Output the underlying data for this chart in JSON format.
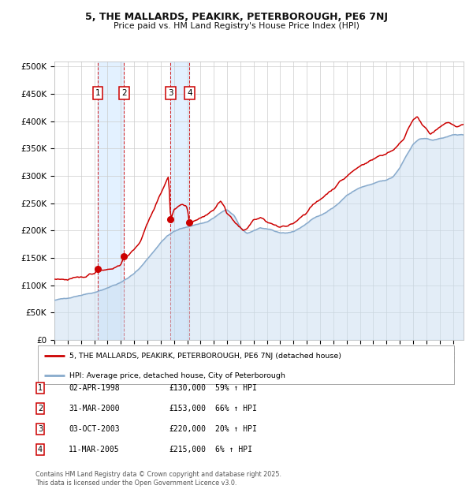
{
  "title_line1": "5, THE MALLARDS, PEAKIRK, PETERBOROUGH, PE6 7NJ",
  "title_line2": "Price paid vs. HM Land Registry's House Price Index (HPI)",
  "legend_label_red": "5, THE MALLARDS, PEAKIRK, PETERBOROUGH, PE6 7NJ (detached house)",
  "legend_label_blue": "HPI: Average price, detached house, City of Peterborough",
  "footer": "Contains HM Land Registry data © Crown copyright and database right 2025.\nThis data is licensed under the Open Government Licence v3.0.",
  "transactions": [
    {
      "num": 1,
      "date": "02-APR-1998",
      "price": 130000,
      "hpi_pct": "59%",
      "year": 1998.25
    },
    {
      "num": 2,
      "date": "31-MAR-2000",
      "price": 153000,
      "hpi_pct": "66%",
      "year": 2000.25
    },
    {
      "num": 3,
      "date": "03-OCT-2003",
      "price": 220000,
      "hpi_pct": "20%",
      "year": 2003.75
    },
    {
      "num": 4,
      "date": "11-MAR-2005",
      "price": 215000,
      "hpi_pct": "6%",
      "year": 2005.17
    }
  ],
  "ylim": [
    0,
    510000
  ],
  "xlim_start": 1995.0,
  "xlim_end": 2025.8,
  "background_color": "#ffffff",
  "grid_color": "#cccccc",
  "red_color": "#cc0000",
  "blue_line_color": "#88aacc",
  "blue_fill_color": "#c8ddf0",
  "shading_color": "#ddeeff",
  "dashed_line_color": "#cc0000",
  "hpi_anchors": [
    [
      1995.0,
      72000
    ],
    [
      1996.0,
      77000
    ],
    [
      1997.0,
      82000
    ],
    [
      1998.0,
      87000
    ],
    [
      1998.5,
      91000
    ],
    [
      1999.0,
      95000
    ],
    [
      1999.5,
      100000
    ],
    [
      2000.0,
      105000
    ],
    [
      2000.5,
      112000
    ],
    [
      2001.0,
      122000
    ],
    [
      2001.5,
      133000
    ],
    [
      2002.0,
      148000
    ],
    [
      2002.5,
      163000
    ],
    [
      2003.0,
      178000
    ],
    [
      2003.5,
      190000
    ],
    [
      2004.0,
      198000
    ],
    [
      2004.5,
      203000
    ],
    [
      2005.0,
      207000
    ],
    [
      2005.5,
      210000
    ],
    [
      2006.0,
      213000
    ],
    [
      2006.5,
      216000
    ],
    [
      2007.0,
      223000
    ],
    [
      2007.5,
      232000
    ],
    [
      2008.0,
      238000
    ],
    [
      2008.5,
      228000
    ],
    [
      2009.0,
      205000
    ],
    [
      2009.5,
      195000
    ],
    [
      2010.0,
      200000
    ],
    [
      2010.5,
      205000
    ],
    [
      2011.0,
      202000
    ],
    [
      2011.5,
      199000
    ],
    [
      2012.0,
      196000
    ],
    [
      2012.5,
      196000
    ],
    [
      2013.0,
      198000
    ],
    [
      2013.5,
      205000
    ],
    [
      2014.0,
      213000
    ],
    [
      2014.5,
      222000
    ],
    [
      2015.0,
      228000
    ],
    [
      2015.5,
      235000
    ],
    [
      2016.0,
      242000
    ],
    [
      2016.5,
      252000
    ],
    [
      2017.0,
      264000
    ],
    [
      2017.5,
      272000
    ],
    [
      2018.0,
      278000
    ],
    [
      2018.5,
      282000
    ],
    [
      2019.0,
      285000
    ],
    [
      2019.5,
      290000
    ],
    [
      2020.0,
      292000
    ],
    [
      2020.5,
      298000
    ],
    [
      2021.0,
      315000
    ],
    [
      2021.5,
      338000
    ],
    [
      2022.0,
      358000
    ],
    [
      2022.5,
      368000
    ],
    [
      2023.0,
      368000
    ],
    [
      2023.5,
      365000
    ],
    [
      2024.0,
      367000
    ],
    [
      2024.5,
      372000
    ],
    [
      2025.0,
      375000
    ],
    [
      2025.8,
      375000
    ]
  ],
  "red_anchors": [
    [
      1995.0,
      112000
    ],
    [
      1996.0,
      110000
    ],
    [
      1997.0,
      114000
    ],
    [
      1997.5,
      118000
    ],
    [
      1998.0,
      122000
    ],
    [
      1998.25,
      130000
    ],
    [
      1998.5,
      128000
    ],
    [
      1999.0,
      129000
    ],
    [
      1999.5,
      132000
    ],
    [
      2000.0,
      137000
    ],
    [
      2000.25,
      153000
    ],
    [
      2000.5,
      154000
    ],
    [
      2001.0,
      163000
    ],
    [
      2001.5,
      183000
    ],
    [
      2002.0,
      212000
    ],
    [
      2002.5,
      240000
    ],
    [
      2003.0,
      268000
    ],
    [
      2003.5,
      295000
    ],
    [
      2003.6,
      300000
    ],
    [
      2003.75,
      220000
    ],
    [
      2004.0,
      238000
    ],
    [
      2004.3,
      244000
    ],
    [
      2004.6,
      250000
    ],
    [
      2004.9,
      246000
    ],
    [
      2005.0,
      242000
    ],
    [
      2005.17,
      215000
    ],
    [
      2005.4,
      217000
    ],
    [
      2005.8,
      220000
    ],
    [
      2006.0,
      224000
    ],
    [
      2006.5,
      229000
    ],
    [
      2007.0,
      238000
    ],
    [
      2007.3,
      248000
    ],
    [
      2007.5,
      252000
    ],
    [
      2007.8,
      246000
    ],
    [
      2008.0,
      232000
    ],
    [
      2008.5,
      218000
    ],
    [
      2009.0,
      204000
    ],
    [
      2009.2,
      199000
    ],
    [
      2009.5,
      204000
    ],
    [
      2009.8,
      213000
    ],
    [
      2010.0,
      220000
    ],
    [
      2010.5,
      223000
    ],
    [
      2010.8,
      219000
    ],
    [
      2011.0,
      216000
    ],
    [
      2011.5,
      210000
    ],
    [
      2012.0,
      205000
    ],
    [
      2012.5,
      208000
    ],
    [
      2013.0,
      214000
    ],
    [
      2013.5,
      224000
    ],
    [
      2014.0,
      234000
    ],
    [
      2014.5,
      247000
    ],
    [
      2015.0,
      257000
    ],
    [
      2015.5,
      267000
    ],
    [
      2016.0,
      277000
    ],
    [
      2016.5,
      289000
    ],
    [
      2017.0,
      299000
    ],
    [
      2017.5,
      309000
    ],
    [
      2018.0,
      318000
    ],
    [
      2018.5,
      325000
    ],
    [
      2019.0,
      330000
    ],
    [
      2019.5,
      337000
    ],
    [
      2020.0,
      341000
    ],
    [
      2020.5,
      348000
    ],
    [
      2021.0,
      358000
    ],
    [
      2021.3,
      368000
    ],
    [
      2021.5,
      380000
    ],
    [
      2021.8,
      395000
    ],
    [
      2022.0,
      405000
    ],
    [
      2022.3,
      408000
    ],
    [
      2022.5,
      400000
    ],
    [
      2022.8,
      390000
    ],
    [
      2023.0,
      385000
    ],
    [
      2023.3,
      375000
    ],
    [
      2023.6,
      380000
    ],
    [
      2024.0,
      390000
    ],
    [
      2024.5,
      397000
    ],
    [
      2025.0,
      394000
    ],
    [
      2025.3,
      390000
    ],
    [
      2025.8,
      394000
    ]
  ]
}
